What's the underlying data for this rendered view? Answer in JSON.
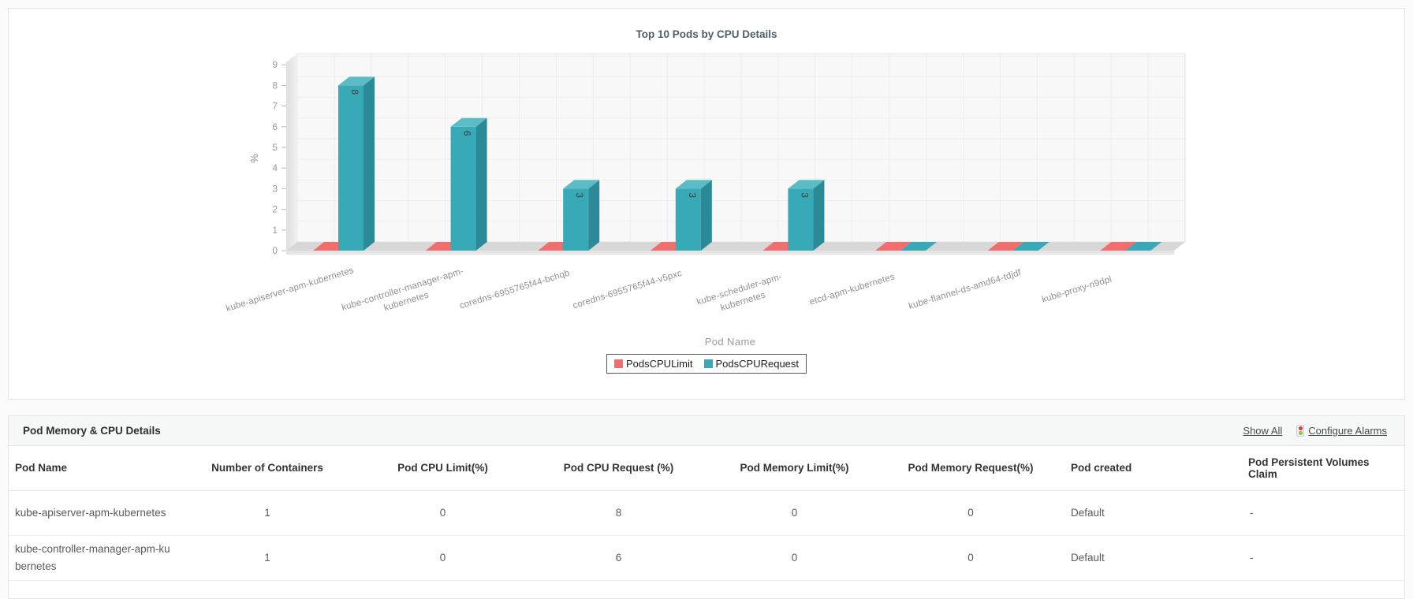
{
  "chart_data": {
    "type": "bar",
    "style": "3d-column",
    "title": "Top 10 Pods by CPU Details",
    "xlabel": "Pod Name",
    "ylabel": "%",
    "ylim": [
      0,
      9
    ],
    "yticks": [
      0,
      1,
      2,
      3,
      4,
      5,
      6,
      7,
      8,
      9
    ],
    "grid": true,
    "legend_position": "bottom",
    "categories": [
      "kube-apiserver-apm-kubernetes",
      "kube-controller-manager-apm-kubernetes",
      "coredns-6955765f44-bchqb",
      "coredns-6955765f44-v5pxc",
      "kube-scheduler-apm-kubernetes",
      "etcd-apm-kubernetes",
      "kube-flannel-ds-amd64-tdjdf",
      "kube-proxy-n9dpl"
    ],
    "series": [
      {
        "name": "PodsCPULimit",
        "color": "#f26d6d",
        "values": [
          0,
          0,
          0,
          0,
          0,
          0,
          0,
          0
        ]
      },
      {
        "name": "PodsCPURequest",
        "color": "#38a9b6",
        "values": [
          8,
          6,
          3,
          3,
          3,
          0,
          0,
          0
        ]
      }
    ]
  },
  "table_panel": {
    "title": "Pod Memory & CPU Details",
    "links": {
      "show_all": "Show All",
      "configure_alarms": "Configure Alarms"
    },
    "columns": [
      "Pod Name",
      "Number of Containers",
      "Pod CPU Limit(%)",
      "Pod CPU Request (%)",
      "Pod Memory Limit(%)",
      "Pod Memory Request(%)",
      "Pod created",
      "Pod Persistent Volumes Claim"
    ],
    "rows": [
      [
        "kube-apiserver-apm-kubernetes",
        "1",
        "0",
        "8",
        "0",
        "0",
        "Default",
        "-"
      ],
      [
        "kube-controller-manager-apm-kubernetes",
        "1",
        "0",
        "6",
        "0",
        "0",
        "Default",
        "-"
      ]
    ]
  },
  "colors": {
    "bar_request_front": "#38a9b6",
    "bar_request_top": "#5cbcc6",
    "bar_request_side": "#2b8a97",
    "bar_limit": "#f26d6d",
    "floor": "#d7d7d7",
    "back_wall": "#f8f8f8",
    "grid_line": "#ededed",
    "axis_text": "#9b9b9b"
  }
}
